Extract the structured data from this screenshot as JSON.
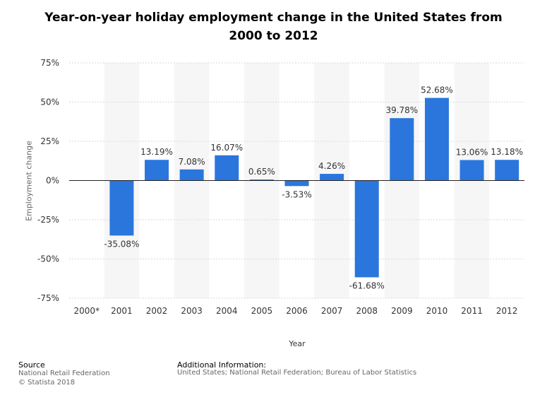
{
  "chart_data": {
    "type": "bar",
    "title": "Year-on-year holiday employment change in the United States from 2000 to 2012",
    "xlabel": "Year",
    "ylabel": "Employment change",
    "categories": [
      "2000*",
      "2001",
      "2002",
      "2003",
      "2004",
      "2005",
      "2006",
      "2007",
      "2008",
      "2009",
      "2010",
      "2011",
      "2012"
    ],
    "values": [
      null,
      -35.08,
      13.19,
      7.08,
      16.07,
      0.65,
      -3.53,
      4.26,
      -61.68,
      39.78,
      52.68,
      13.06,
      13.18
    ],
    "value_labels": [
      "",
      "-35.08%",
      "13.19%",
      "7.08%",
      "16.07%",
      "0.65%",
      "-3.53%",
      "4.26%",
      "-61.68%",
      "39.78%",
      "52.68%",
      "13.06%",
      "13.18%"
    ],
    "ylim": [
      -75,
      75
    ],
    "yticks": [
      75,
      50,
      25,
      0,
      -25,
      -50,
      -75
    ],
    "ytick_labels": [
      "75%",
      "50%",
      "25%",
      "0%",
      "-25%",
      "-50%",
      "-75%"
    ],
    "grid": true,
    "bar_color": "#2a76dd"
  },
  "footer": {
    "source_title": "Source",
    "source_lines": [
      "National Retail Federation",
      "© Statista 2018"
    ],
    "additional_title": "Additional Information:",
    "additional_text": "United States; National Retail Federation; Bureau of Labor Statistics"
  }
}
